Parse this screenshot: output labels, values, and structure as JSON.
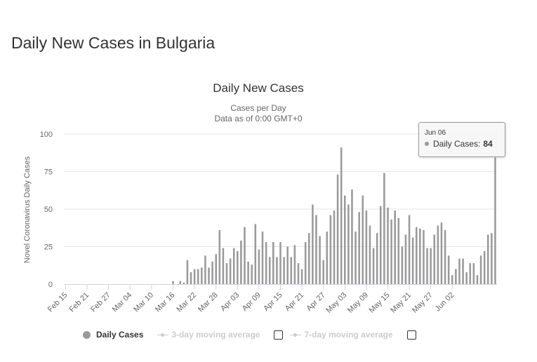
{
  "page": {
    "title": "Daily New Cases in Bulgaria"
  },
  "colors": {
    "bar": "#9a9a9a",
    "grid": "#e6e6e6",
    "axis": "#ccd6eb",
    "text": "#333333",
    "inactive": "#cccccc"
  },
  "legend": {
    "items": [
      {
        "label": "Daily Cases",
        "active": true
      },
      {
        "label": "3-day moving average",
        "active": false
      },
      {
        "label": "7-day moving average",
        "active": false
      }
    ]
  },
  "tooltip": {
    "date": "Jun 06",
    "series": "Daily Cases:",
    "value": "84"
  },
  "chart_data": {
    "type": "bar",
    "title": "Daily New Cases",
    "subtitle_lines": [
      "Cases per Day",
      "Data as of 0:00 GMT+0"
    ],
    "xlabel": "",
    "ylabel": "Novel Coronavirus Daily Cases",
    "ylim": [
      0,
      100
    ],
    "yticks": [
      0,
      25,
      50,
      75,
      100
    ],
    "grid": true,
    "legend_position": "bottom",
    "start_date": "Feb 15",
    "tick_labels": [
      "Feb 15",
      "Feb 21",
      "Feb 27",
      "Mar 04",
      "Mar 10",
      "Mar 16",
      "Mar 22",
      "Mar 28",
      "Apr 03",
      "Apr 09",
      "Apr 15",
      "Apr 21",
      "Apr 27",
      "May 03",
      "May 09",
      "May 15",
      "May 21",
      "May 27",
      "Jun 02"
    ],
    "series": [
      {
        "name": "Daily Cases",
        "values": [
          0,
          0,
          0,
          0,
          0,
          0,
          0,
          0,
          0,
          0,
          0,
          0,
          0,
          0,
          0,
          0,
          0,
          0,
          0,
          0,
          0,
          0,
          0,
          0,
          0,
          0,
          0,
          0,
          0,
          0,
          2,
          0,
          2,
          1,
          16,
          8,
          10,
          10,
          11,
          19,
          11,
          15,
          20,
          36,
          24,
          14,
          17,
          24,
          22,
          29,
          38,
          15,
          13,
          40,
          23,
          35,
          28,
          18,
          28,
          18,
          28,
          18,
          25,
          18,
          26,
          14,
          10,
          28,
          34,
          53,
          46,
          32,
          16,
          35,
          46,
          49,
          73,
          91,
          59,
          53,
          63,
          35,
          48,
          59,
          49,
          39,
          24,
          34,
          52,
          74,
          51,
          43,
          49,
          44,
          25,
          33,
          46,
          31,
          38,
          37,
          36,
          24,
          24,
          33,
          39,
          41,
          36,
          19,
          6,
          10,
          17,
          17,
          8,
          14,
          14,
          6,
          19,
          22,
          33,
          34,
          84
        ]
      }
    ]
  }
}
